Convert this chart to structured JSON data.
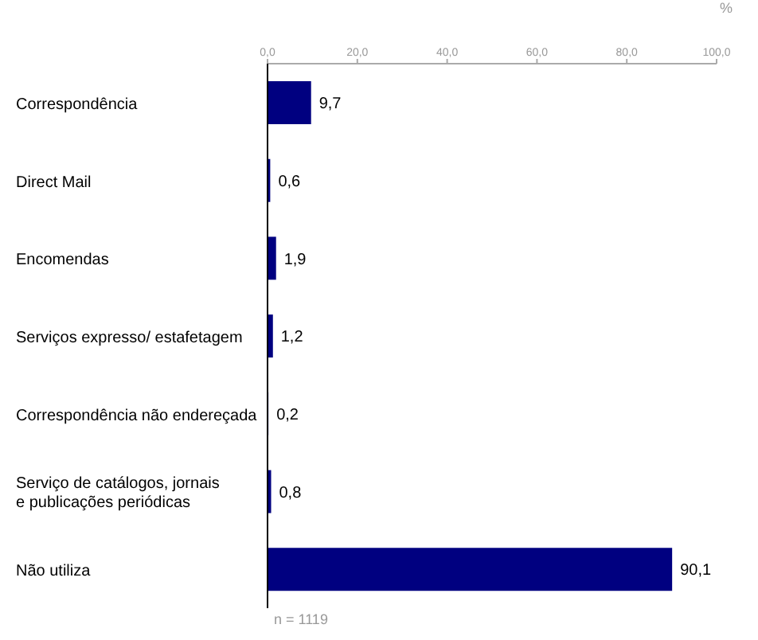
{
  "chart_data": {
    "type": "bar",
    "orientation": "horizontal",
    "xlabel": "%",
    "categories": [
      "Correspondência",
      "Direct Mail",
      "Encomendas",
      "Serviços expresso/ estafetagem",
      "Correspondência não endereçada",
      "Serviço de catálogos, jornais e publicações periódicas",
      "Não utiliza"
    ],
    "values": [
      9.7,
      0.6,
      1.9,
      1.2,
      0.2,
      0.8,
      90.1
    ],
    "value_labels": [
      "9,7",
      "0,6",
      "1,9",
      "1,2",
      "0,2",
      "0,8",
      "90,1"
    ],
    "color": "#000080",
    "xlim": [
      0,
      100
    ],
    "xticks": [
      {
        "value": 0,
        "label": "0,0"
      },
      {
        "value": 20,
        "label": "20,0"
      },
      {
        "value": 40,
        "label": "40,0"
      },
      {
        "value": 60,
        "label": "60,0"
      },
      {
        "value": 80,
        "label": "80,0"
      },
      {
        "value": 100,
        "label": "100,0"
      }
    ],
    "annotations": [
      "n = 1119"
    ]
  }
}
